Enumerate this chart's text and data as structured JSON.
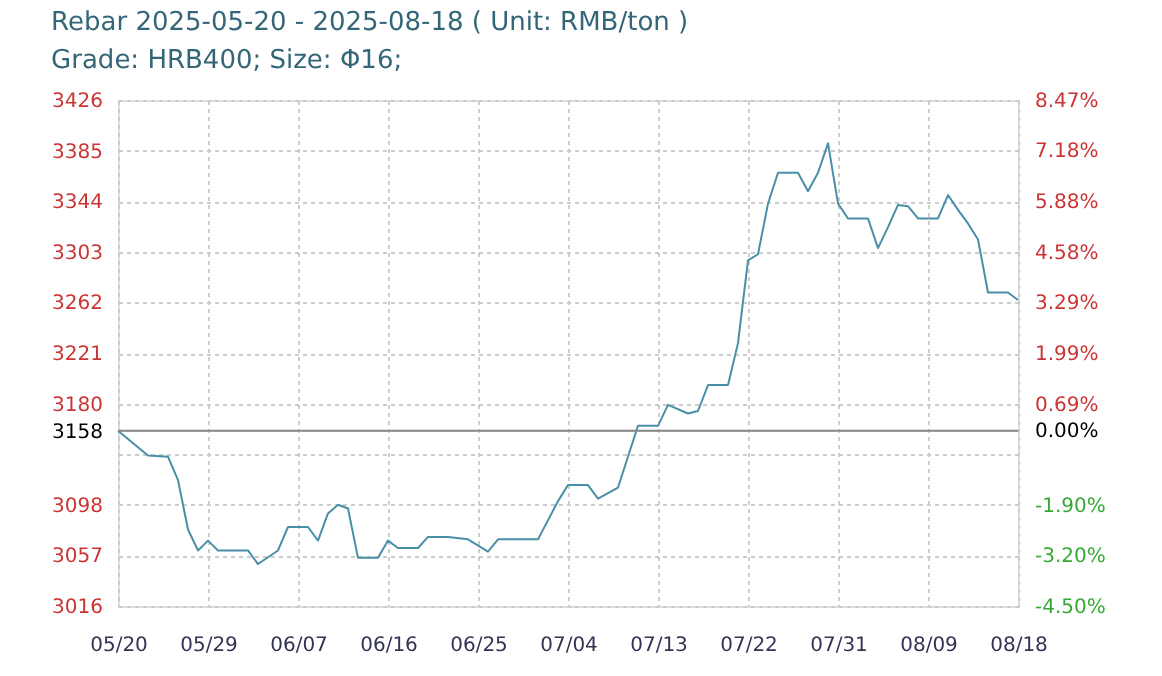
{
  "chart_data": {
    "type": "line",
    "title": "Rebar 2025-05-20 - 2025-08-18     ( Unit: RMB/ton )",
    "subtitle": "Grade: HRB400; Size: Φ16;",
    "x": [
      "2025-05-20",
      "2025-05-23",
      "2025-05-25",
      "2025-05-26",
      "2025-05-27",
      "2025-05-28",
      "2025-05-29",
      "2025-05-30",
      "2025-06-02",
      "2025-06-03",
      "2025-06-05",
      "2025-06-06",
      "2025-06-08",
      "2025-06-09",
      "2025-06-10",
      "2025-06-11",
      "2025-06-12",
      "2025-06-13",
      "2025-06-15",
      "2025-06-16",
      "2025-06-17",
      "2025-06-19",
      "2025-06-20",
      "2025-06-22",
      "2025-06-24",
      "2025-06-26",
      "2025-06-27",
      "2025-07-01",
      "2025-07-03",
      "2025-07-04",
      "2025-07-06",
      "2025-07-07",
      "2025-07-09",
      "2025-07-11",
      "2025-07-13",
      "2025-07-14",
      "2025-07-16",
      "2025-07-17",
      "2025-07-18",
      "2025-07-20",
      "2025-07-21",
      "2025-07-22",
      "2025-07-23",
      "2025-07-24",
      "2025-07-25",
      "2025-07-27",
      "2025-07-28",
      "2025-07-29",
      "2025-07-30",
      "2025-07-31",
      "2025-08-01",
      "2025-08-03",
      "2025-08-04",
      "2025-08-05",
      "2025-08-06",
      "2025-08-07",
      "2025-08-08",
      "2025-08-10",
      "2025-08-11",
      "2025-08-12",
      "2025-08-13",
      "2025-08-14",
      "2025-08-15",
      "2025-08-17",
      "2025-08-18"
    ],
    "series": [
      {
        "color": "#4a8fa8",
        "values": [
          3158,
          3138,
          3137,
          3118,
          3078,
          3061,
          3069,
          3061,
          3061,
          3050,
          3061,
          3080,
          3080,
          3069,
          3091,
          3098,
          3095,
          3055,
          3055,
          3069,
          3063,
          3063,
          3072,
          3072,
          3070,
          3060,
          3070,
          3070,
          3101,
          3114,
          3114,
          3103,
          3112,
          3162,
          3162,
          3179,
          3172,
          3174,
          3195,
          3195,
          3229,
          3296,
          3301,
          3342,
          3367,
          3367,
          3352,
          3367,
          3391,
          3342,
          3330,
          3330,
          3306,
          3323,
          3341,
          3340,
          3330,
          3330,
          3349,
          3337,
          3326,
          3313,
          3270,
          3270,
          3264
        ]
      }
    ],
    "xlim": [
      "2025-05-20",
      "2025-08-18"
    ],
    "xticks": [
      {
        "value": "2025-05-20",
        "label": "05/20"
      },
      {
        "value": "2025-05-29",
        "label": "05/29"
      },
      {
        "value": "2025-06-07",
        "label": "06/07"
      },
      {
        "value": "2025-06-16",
        "label": "06/16"
      },
      {
        "value": "2025-06-25",
        "label": "06/25"
      },
      {
        "value": "2025-07-04",
        "label": "07/04"
      },
      {
        "value": "2025-07-13",
        "label": "07/13"
      },
      {
        "value": "2025-07-22",
        "label": "07/22"
      },
      {
        "value": "2025-07-31",
        "label": "07/31"
      },
      {
        "value": "2025-08-09",
        "label": "08/09"
      },
      {
        "value": "2025-08-18",
        "label": "08/18"
      }
    ],
    "ylim": [
      3016,
      3426
    ],
    "yticks": [
      3016,
      3057,
      3098,
      {
        "value": 3139,
        "label": null
      },
      3158,
      3180,
      3221,
      3262,
      3303,
      3344,
      3385,
      3426
    ],
    "y2lim": [
      -4.5,
      8.47
    ],
    "y2ticks": [
      {
        "value": -4.5,
        "label": "-4.50%"
      },
      {
        "value": -3.2,
        "label": "-3.20%"
      },
      {
        "value": -1.9,
        "label": "-1.90%"
      },
      {
        "value": 0,
        "label": "0.00%"
      },
      {
        "value": 0.69,
        "label": "0.69%"
      },
      {
        "value": 1.99,
        "label": "1.99%"
      },
      {
        "value": 3.29,
        "label": "3.29%"
      },
      {
        "value": 4.58,
        "label": "4.58%"
      },
      {
        "value": 5.88,
        "label": "5.88%"
      },
      {
        "value": 7.18,
        "label": "7.18%"
      },
      {
        "value": 8.47,
        "label": "8.47%"
      }
    ],
    "ref_lines": [
      {
        "axis": "y",
        "value": 3158,
        "color": "#888888"
      }
    ],
    "grid": true,
    "marker": "none",
    "line_style": "solid"
  }
}
